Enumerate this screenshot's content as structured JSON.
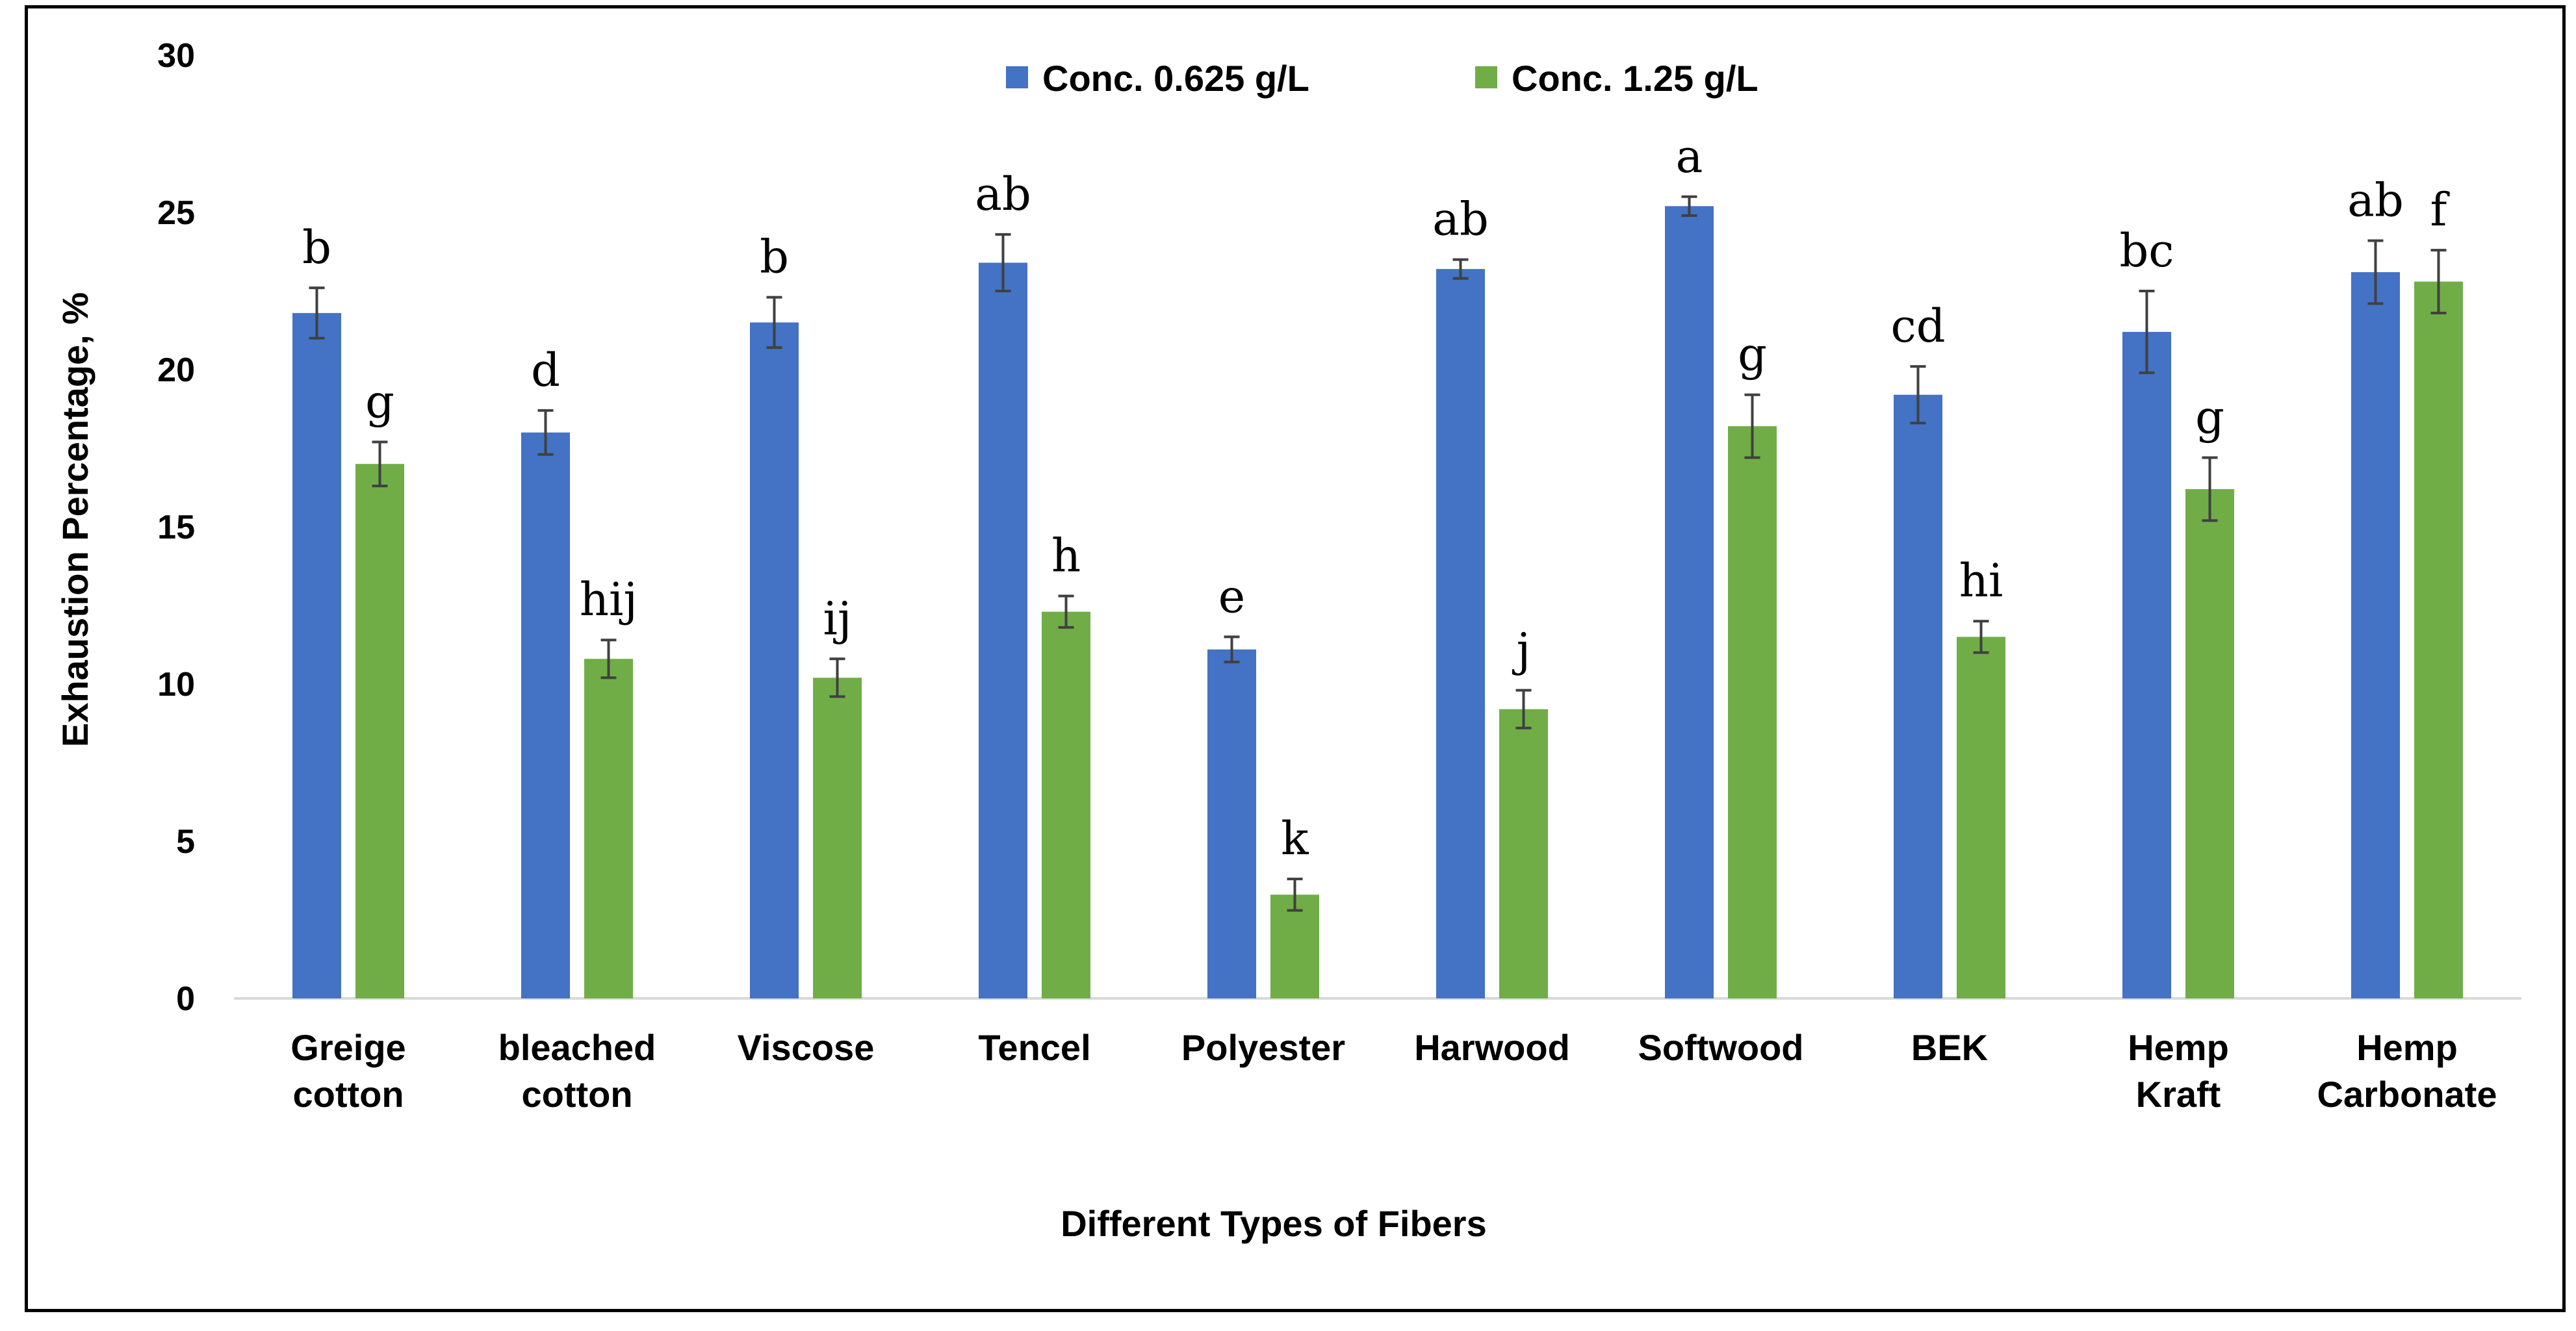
{
  "chart_data": {
    "type": "bar",
    "title": "",
    "xlabel": "Different Types of Fibers",
    "ylabel": "Exhaustion Percentage, %",
    "ylim": [
      0,
      30
    ],
    "yticks": [
      0,
      5,
      10,
      15,
      20,
      25,
      30
    ],
    "grid": false,
    "legend_position": "top-center",
    "categories": [
      [
        "Greige",
        "cotton"
      ],
      [
        "bleached",
        "cotton"
      ],
      [
        "Viscose"
      ],
      [
        "Tencel"
      ],
      [
        "Polyester"
      ],
      [
        "Harwood"
      ],
      [
        "Softwood"
      ],
      [
        "BEK"
      ],
      [
        "Hemp",
        "Kraft"
      ],
      [
        "Hemp",
        "Carbonate"
      ]
    ],
    "series": [
      {
        "name": "Conc. 0.625 g/L",
        "color": "#4472C4",
        "values": [
          21.8,
          18.0,
          21.5,
          23.4,
          11.1,
          23.2,
          25.2,
          19.2,
          21.2,
          23.1
        ],
        "errors": [
          0.8,
          0.7,
          0.8,
          0.9,
          0.4,
          0.3,
          0.3,
          0.9,
          1.3,
          1.0
        ],
        "sig_labels": [
          "b",
          "d",
          "b",
          "ab",
          "e",
          "ab",
          "a",
          "cd",
          "bc",
          "ab"
        ]
      },
      {
        "name": "Conc. 1.25 g/L",
        "color": "#70AD47",
        "values": [
          17.0,
          10.8,
          10.2,
          12.3,
          3.3,
          9.2,
          18.2,
          11.5,
          16.2,
          22.8
        ],
        "errors": [
          0.7,
          0.6,
          0.6,
          0.5,
          0.5,
          0.6,
          1.0,
          0.5,
          1.0,
          1.0
        ],
        "sig_labels": [
          "g",
          "hij",
          "ij",
          "h",
          "k",
          "j",
          "g",
          "hi",
          "g",
          "f"
        ]
      }
    ]
  }
}
